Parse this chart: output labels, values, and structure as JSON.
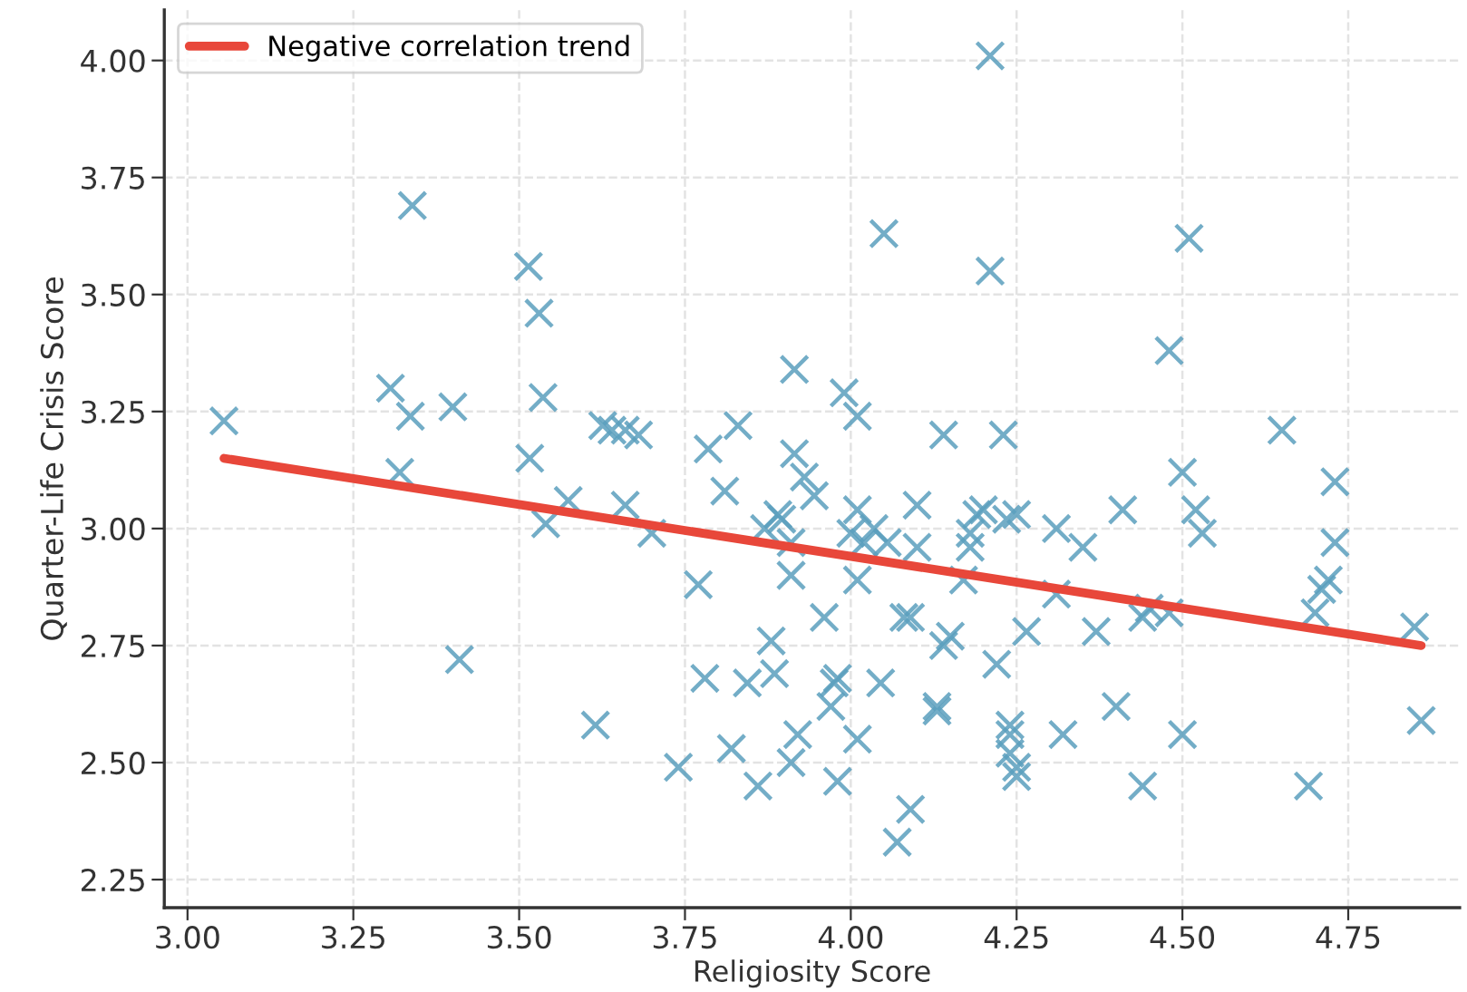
{
  "chart_data": {
    "type": "scatter",
    "xlabel": "Religiosity Score",
    "ylabel": "Quarter-Life Crisis Score",
    "xlim": [
      2.965,
      4.918
    ],
    "ylim": [
      2.19,
      4.108
    ],
    "xticks": [
      {
        "value": 3.0,
        "label": "3.00"
      },
      {
        "value": 3.25,
        "label": "3.25"
      },
      {
        "value": 3.5,
        "label": "3.50"
      },
      {
        "value": 3.75,
        "label": "3.75"
      },
      {
        "value": 4.0,
        "label": "4.00"
      },
      {
        "value": 4.25,
        "label": "4.25"
      },
      {
        "value": 4.5,
        "label": "4.50"
      },
      {
        "value": 4.75,
        "label": "4.75"
      }
    ],
    "yticks": [
      {
        "value": 2.25,
        "label": "2.25"
      },
      {
        "value": 2.5,
        "label": "2.50"
      },
      {
        "value": 2.75,
        "label": "2.75"
      },
      {
        "value": 3.0,
        "label": "3.00"
      },
      {
        "value": 3.25,
        "label": "3.25"
      },
      {
        "value": 3.5,
        "label": "3.50"
      },
      {
        "value": 3.75,
        "label": "3.75"
      },
      {
        "value": 4.0,
        "label": "4.00"
      }
    ],
    "grid": true,
    "legend": "top left",
    "series": [
      {
        "marker": "cross",
        "color": "#5b9fbd",
        "x": [
          3.055,
          3.306,
          3.32,
          3.336,
          3.339,
          3.4,
          3.41,
          3.514,
          3.516,
          3.53,
          3.536,
          3.54,
          3.574,
          3.615,
          3.626,
          3.64,
          3.66,
          3.66,
          3.68,
          3.7,
          3.74,
          3.77,
          3.78,
          3.785,
          3.81,
          3.82,
          3.83,
          3.844,
          3.86,
          3.87,
          3.88,
          3.885,
          3.89,
          3.896,
          3.91,
          3.91,
          3.92,
          3.91,
          3.915,
          3.915,
          3.93,
          3.945,
          3.96,
          3.97,
          3.975,
          3.98,
          3.98,
          3.99,
          4.0,
          4.01,
          4.01,
          4.01,
          4.01,
          4.02,
          4.035,
          4.045,
          4.05,
          4.055,
          4.07,
          4.08,
          4.09,
          4.09,
          4.1,
          4.1,
          4.13,
          4.13,
          4.14,
          4.14,
          4.15,
          4.17,
          4.18,
          4.18,
          4.19,
          4.2,
          4.21,
          4.21,
          4.22,
          4.23,
          4.235,
          4.24,
          4.24,
          4.24,
          4.25,
          4.25,
          4.25,
          4.265,
          4.31,
          4.31,
          4.32,
          4.35,
          4.37,
          4.4,
          4.41,
          4.44,
          4.44,
          4.45,
          4.48,
          4.48,
          4.5,
          4.5,
          4.51,
          4.52,
          4.53,
          4.65,
          4.69,
          4.7,
          4.71,
          4.72,
          4.73,
          4.73,
          4.85,
          4.86
        ],
        "values": [
          3.23,
          3.3,
          3.12,
          3.24,
          3.69,
          3.26,
          2.72,
          3.56,
          3.15,
          3.46,
          3.28,
          3.01,
          3.06,
          2.58,
          3.22,
          3.21,
          3.21,
          3.05,
          3.2,
          2.99,
          2.49,
          2.88,
          2.68,
          3.17,
          3.08,
          2.53,
          3.22,
          2.67,
          2.45,
          3.0,
          2.76,
          2.69,
          3.03,
          3.02,
          2.97,
          2.9,
          2.56,
          2.5,
          3.34,
          3.16,
          3.11,
          3.07,
          2.81,
          2.62,
          2.67,
          2.68,
          2.46,
          3.29,
          2.99,
          2.55,
          3.24,
          2.89,
          3.04,
          2.97,
          3.0,
          2.67,
          3.63,
          2.97,
          2.33,
          2.81,
          2.4,
          2.81,
          3.05,
          2.96,
          2.61,
          2.62,
          3.2,
          2.75,
          2.77,
          2.89,
          2.96,
          2.99,
          3.03,
          3.04,
          3.55,
          4.01,
          2.71,
          3.2,
          3.02,
          2.58,
          2.56,
          2.52,
          3.03,
          2.49,
          2.47,
          2.78,
          3.0,
          2.86,
          2.56,
          2.96,
          2.78,
          2.62,
          3.04,
          2.81,
          2.45,
          2.83,
          2.82,
          3.38,
          2.56,
          3.12,
          3.62,
          3.04,
          2.99,
          3.21,
          2.45,
          2.82,
          2.87,
          2.89,
          2.97,
          3.1,
          2.79,
          2.59
        ]
      },
      {
        "type": "line",
        "name": "Negative correlation trend",
        "color": "#e8473a",
        "marker": "none",
        "line_style": "solid",
        "x": [
          3.055,
          4.86
        ],
        "values": [
          3.15,
          2.75
        ]
      }
    ]
  }
}
